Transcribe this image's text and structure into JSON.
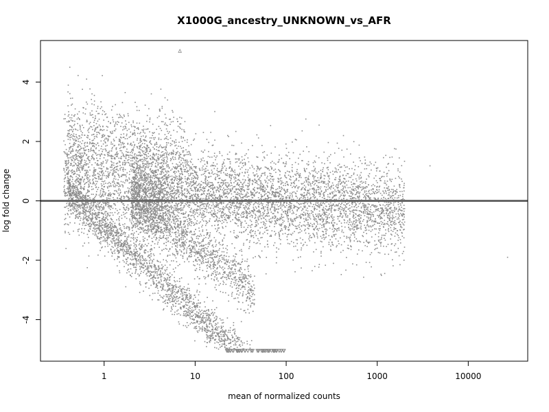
{
  "chart_data": {
    "type": "scatter",
    "title": "X1000G_ancestry_UNKNOWN_vs_AFR",
    "xlabel": "mean of normalized counts",
    "ylabel": "log fold change",
    "x_scale": "log",
    "xlim": [
      0.2,
      45000
    ],
    "ylim": [
      -5.4,
      5.4
    ],
    "x_ticks": [
      1,
      10,
      100,
      1000,
      10000
    ],
    "x_tick_labels": [
      "1",
      "10",
      "100",
      "1000",
      "10000"
    ],
    "y_ticks": [
      -4,
      -2,
      0,
      2,
      4
    ],
    "y_tick_labels": [
      "-4",
      "-2",
      "0",
      "2",
      "4"
    ],
    "reference_line_y": 0,
    "point_color": "#8c8c8c",
    "reference_line_color": "#666666",
    "grid": false,
    "legend": "none",
    "series": [
      {
        "values_note_points": [],
        "outliers": [
          {
            "x": 6.8,
            "y": 5.05,
            "marker": "triangle-up"
          },
          {
            "x": 0.42,
            "y": 4.5,
            "marker": "dot"
          },
          {
            "x": 27000,
            "y": -1.9,
            "marker": "dot"
          },
          {
            "x": 3800,
            "y": 1.18,
            "marker": "dot"
          },
          {
            "x": 230,
            "y": 2.55,
            "marker": "dot"
          }
        ],
        "clusters": [
          {
            "x_range": [
              0.4,
              60
            ],
            "y_center_at_start": 0.3,
            "y_slope_per_decade": -2.9,
            "spread": 0.35,
            "count": 2200
          },
          {
            "x_range": [
              0.35,
              5
            ],
            "y_center_at_start": 0.8,
            "y_slope_per_decade": -0.6,
            "spread": 0.9,
            "count": 1600
          },
          {
            "x_range": [
              2,
              45
            ],
            "y_center_at_start": 0.0,
            "y_slope_per_decade": -2.3,
            "spread": 0.4,
            "count": 1200
          },
          {
            "x_range": [
              2,
              2000
            ],
            "y_center_at_start": 0.4,
            "y_slope_per_decade": -0.25,
            "spread": 0.75,
            "count": 5000
          },
          {
            "x_range": [
              0.4,
              8
            ],
            "y_center_at_start": 2.3,
            "y_slope_per_decade": -0.5,
            "spread": 0.7,
            "count": 700
          }
        ],
        "floor_points": {
          "x_range": [
            22,
            95
          ],
          "y": -5.05,
          "marker": "triangle-down",
          "count": 60
        }
      }
    ]
  }
}
